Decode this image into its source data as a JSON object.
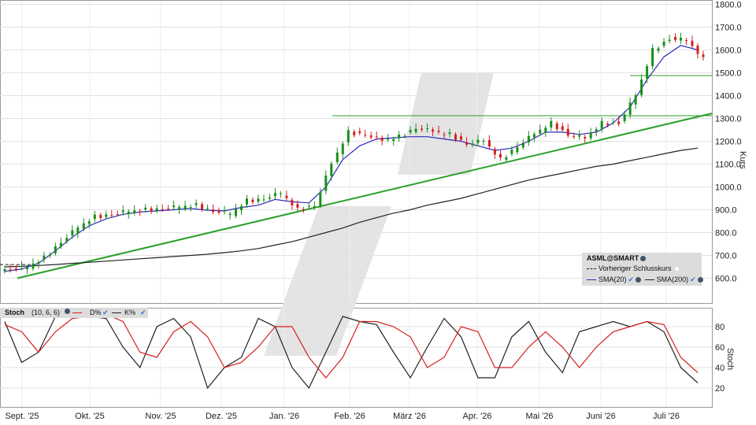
{
  "price_panel": {
    "ylabel": "Kurs",
    "ylim": [
      500,
      1800
    ],
    "yticks": [
      "1800.0",
      "1700.0",
      "1600.0",
      "1500.0",
      "1400.0",
      "1300.0",
      "1200.0",
      "1100.0",
      "1000.0",
      "900.0",
      "800.0",
      "700.0",
      "600.0"
    ],
    "horizontal_lines": [
      1312,
      1488
    ],
    "trendline": {
      "from": {
        "date": "Sept. '25",
        "value": 600
      },
      "to": {
        "date": "Juli '26 (end)",
        "value": 1322
      }
    }
  },
  "legend": {
    "title": "ASML@SMART",
    "prev_close": "Vorheriger Schlusskurs",
    "sma20": "SMA(20)",
    "sma200": "SMA(200)"
  },
  "stoch_panel": {
    "title": "Stoch",
    "params": "(10, 6, 6)",
    "d_label": "D%",
    "k_label": "K%",
    "ylabel": "Stoch",
    "yticks": [
      "80",
      "60",
      "40",
      "20"
    ],
    "ylim": [
      10,
      100
    ]
  },
  "x_labels": [
    "Sept. '25",
    "Okt. '25",
    "Nov. '25",
    "Dez. '25",
    "Jan. '26",
    "Feb. '26",
    "März '26",
    "Apr. '26",
    "Mai '26",
    "Juni '26",
    "Juli '26"
  ],
  "colors": {
    "up": "#1a8f1a",
    "down": "#d42020",
    "sma20": "#2b2bb8",
    "sma200": "#222222",
    "trend": "#2aa02a",
    "stoch_d": "#d42020",
    "stoch_k": "#222222"
  },
  "chart_data": {
    "type": "line",
    "series": [
      {
        "name": "ASML@SMART",
        "close": [
          640,
          645,
          690,
          760,
          820,
          870,
          880,
          890,
          900,
          905,
          910,
          920,
          895,
          880,
          940,
          950,
          970,
          900,
          920,
          1100,
          1240,
          1230,
          1200,
          1220,
          1260,
          1240,
          1230,
          1190,
          1200,
          1120,
          1180,
          1230,
          1280,
          1230,
          1210,
          1280,
          1280,
          1400,
          1600,
          1650,
          1640,
          1560
        ]
      },
      {
        "name": "SMA(20)",
        "values": [
          630,
          640,
          665,
          720,
          780,
          830,
          860,
          880,
          890,
          895,
          900,
          905,
          898,
          895,
          910,
          920,
          945,
          935,
          930,
          1000,
          1120,
          1180,
          1210,
          1215,
          1220,
          1220,
          1210,
          1200,
          1180,
          1160,
          1170,
          1200,
          1240,
          1240,
          1230,
          1240,
          1280,
          1350,
          1470,
          1570,
          1620,
          1600
        ]
      },
      {
        "name": "SMA(200)",
        "values": [
          650,
          652,
          656,
          660,
          665,
          670,
          675,
          680,
          685,
          690,
          695,
          700,
          705,
          712,
          720,
          730,
          745,
          760,
          780,
          800,
          820,
          845,
          865,
          885,
          900,
          920,
          935,
          950,
          970,
          990,
          1010,
          1030,
          1045,
          1060,
          1075,
          1090,
          1100,
          1115,
          1130,
          1145,
          1160,
          1170
        ]
      },
      {
        "name": "D%",
        "values": [
          82,
          75,
          55,
          75,
          88,
          90,
          92,
          85,
          55,
          50,
          75,
          85,
          70,
          40,
          45,
          60,
          80,
          80,
          50,
          30,
          50,
          85,
          85,
          80,
          70,
          40,
          50,
          80,
          75,
          40,
          40,
          60,
          75,
          60,
          40,
          60,
          75,
          80,
          85,
          82,
          50,
          35
        ]
      },
      {
        "name": "K%",
        "values": [
          85,
          45,
          55,
          90,
          92,
          90,
          88,
          60,
          40,
          80,
          88,
          70,
          20,
          40,
          50,
          88,
          80,
          40,
          20,
          55,
          90,
          85,
          82,
          55,
          30,
          60,
          88,
          70,
          30,
          30,
          70,
          85,
          55,
          35,
          75,
          80,
          85,
          80,
          85,
          75,
          40,
          25
        ]
      }
    ]
  }
}
